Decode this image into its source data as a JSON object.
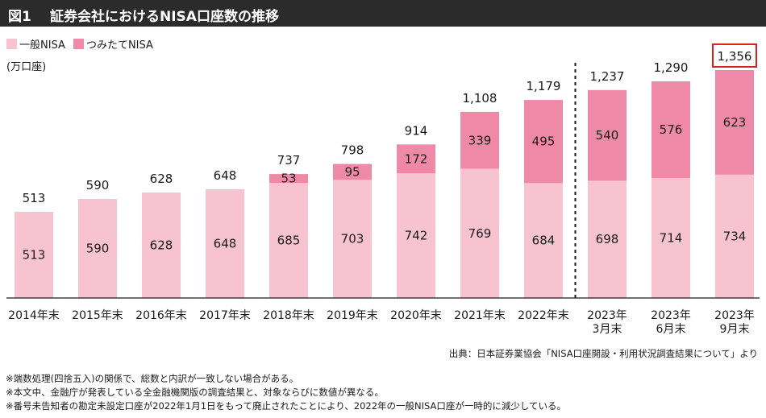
{
  "header": {
    "figure_label": "図1",
    "title": "証券会社におけるNISA口座数の推移"
  },
  "legend": {
    "general": "一般NISA",
    "tsumitate": "つみたてNISA"
  },
  "unit_label": "(万口座)",
  "colors": {
    "general": "#f7c3d1",
    "tsumitate": "#ee8aa8",
    "highlight": "#d62020",
    "header_bg": "#2b2b2b"
  },
  "source": "出典：日本証券業協会「NISA口座開設・利用状況調査結果について」より",
  "notes": [
    "※端数処理(四捨五入)の関係で、総数と内訳が一致しない場合がある。",
    "※本文中、金融庁が発表している全金融機関版の調査結果と、対象ならびに数値が異なる。",
    "※番号未告知者の勘定未設定口座が2022年1月1日をもって廃止されたことにより、2022年の一般NISA口座が一時的に減少している。"
  ],
  "chart_data": {
    "type": "bar",
    "stacked": true,
    "categories": [
      [
        "2014年末"
      ],
      [
        "2015年末"
      ],
      [
        "2016年末"
      ],
      [
        "2017年末"
      ],
      [
        "2018年末"
      ],
      [
        "2019年末"
      ],
      [
        "2020年末"
      ],
      [
        "2021年末"
      ],
      [
        "2022年末"
      ],
      [
        "2023年",
        "3月末"
      ],
      [
        "2023年",
        "6月末"
      ],
      [
        "2023年",
        "9月末"
      ]
    ],
    "series": [
      {
        "name": "一般NISA",
        "values": [
          513,
          590,
          628,
          648,
          685,
          703,
          742,
          769,
          684,
          698,
          714,
          734
        ]
      },
      {
        "name": "つみたてNISA",
        "values": [
          null,
          null,
          null,
          null,
          53,
          95,
          172,
          339,
          495,
          540,
          576,
          623
        ]
      }
    ],
    "totals": [
      "513",
      "590",
      "628",
      "648",
      "737",
      "798",
      "914",
      "1,108",
      "1,179",
      "1,237",
      "1,290",
      "1,356"
    ],
    "highlighted_total_index": 11,
    "divider_after_index": 8,
    "ylim": [
      0,
      1400
    ],
    "ylabel": "(万口座)",
    "grid": false,
    "legend_position": "top-left"
  }
}
